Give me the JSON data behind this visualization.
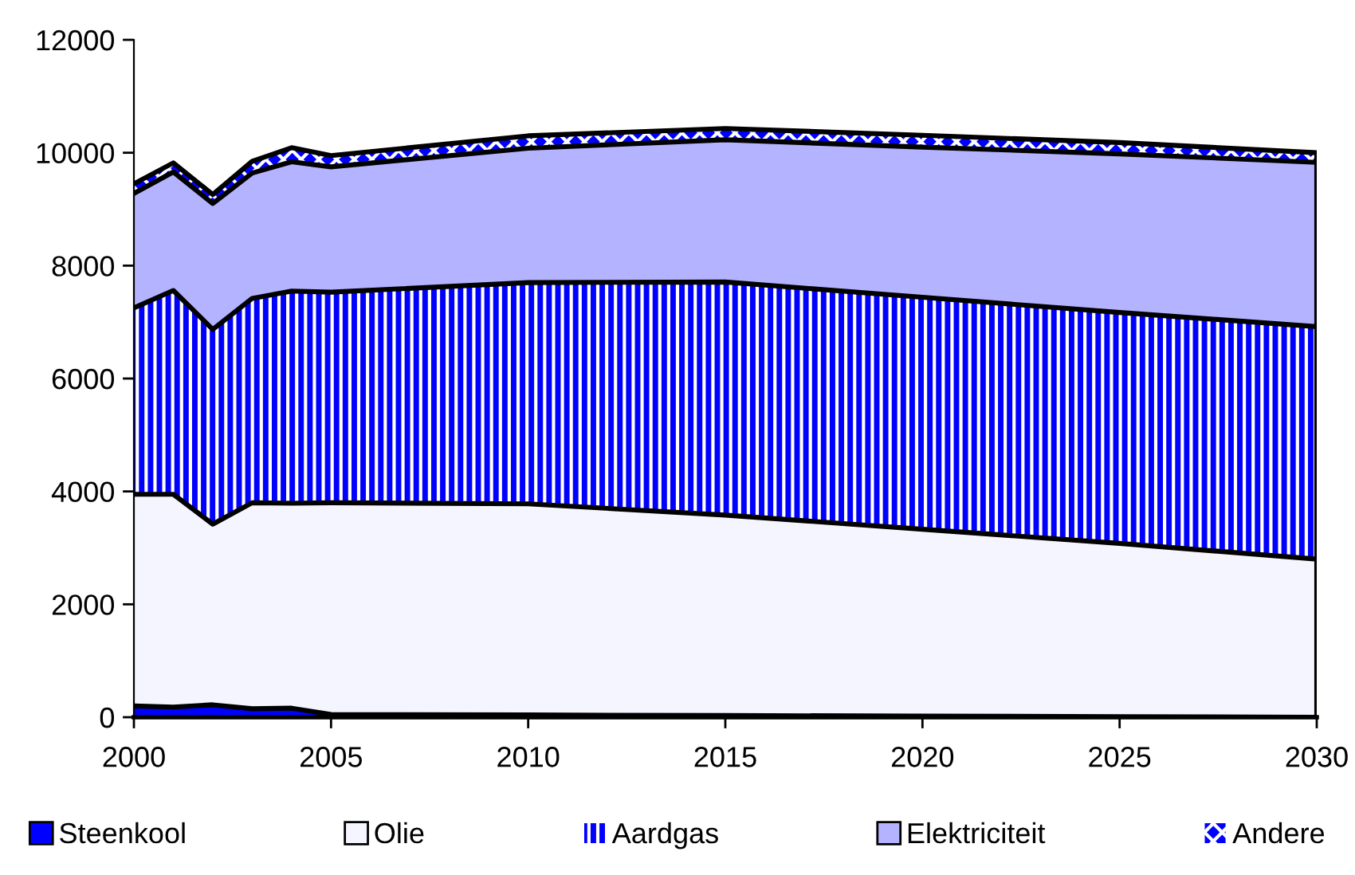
{
  "chart_data": {
    "type": "area",
    "stacked": true,
    "x": [
      2000,
      2001,
      2002,
      2003,
      2004,
      2005,
      2010,
      2015,
      2020,
      2025,
      2030
    ],
    "series": [
      {
        "name": "Steenkool",
        "color": "#0000ff",
        "values": [
          200,
          180,
          220,
          150,
          160,
          50,
          40,
          30,
          20,
          10,
          0
        ]
      },
      {
        "name": "Olie",
        "color": "#f5f5ff",
        "values": [
          3750,
          3770,
          3200,
          3650,
          3630,
          3750,
          3740,
          3550,
          3310,
          3070,
          2800
        ]
      },
      {
        "name": "Aardgas",
        "color": "#0000ff",
        "values": [
          3300,
          3610,
          3450,
          3620,
          3760,
          3730,
          3920,
          4130,
          4110,
          4090,
          4120
        ]
      },
      {
        "name": "Elektriciteit",
        "color": "#b3b3ff",
        "values": [
          2030,
          2100,
          2230,
          2220,
          2290,
          2220,
          2380,
          2520,
          2660,
          2810,
          2910
        ]
      },
      {
        "name": "Andere",
        "color": "#0000ff",
        "values": [
          170,
          160,
          160,
          210,
          250,
          200,
          220,
          200,
          210,
          200,
          170
        ]
      }
    ],
    "xlim": [
      2000,
      2030
    ],
    "xticks": [
      2000,
      2005,
      2010,
      2015,
      2020,
      2025,
      2030
    ],
    "ylim": [
      0,
      12000
    ],
    "yticks": [
      0,
      2000,
      4000,
      6000,
      8000,
      10000,
      12000
    ],
    "grid": false,
    "legend": "bottom"
  }
}
